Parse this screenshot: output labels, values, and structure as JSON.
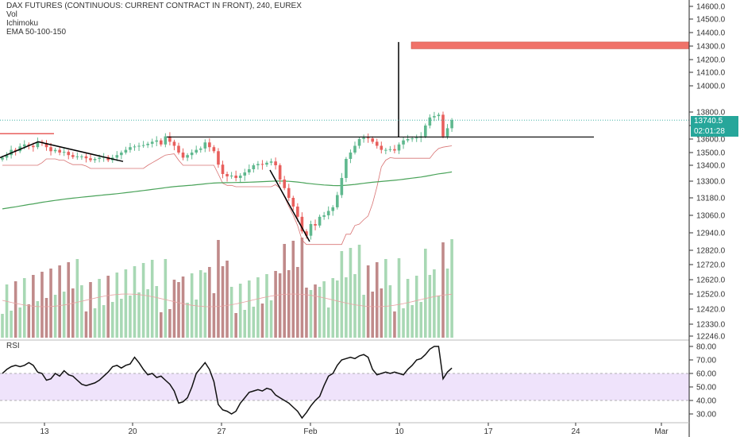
{
  "legend": {
    "title": "DAX FUTURES (CONTINUOUS: CURRENT CONTRACT IN FRONT), 240, EUREX",
    "vol": "Vol",
    "ichimoku": "Ichimoku",
    "ema": "EMA 50-100-150",
    "rsi": "RSI"
  },
  "colors": {
    "up": "#5fb88e",
    "down": "#e85f5c",
    "vol_up": "#a8d8b4",
    "vol_down": "#c08a8a",
    "ema": "#4aa35a",
    "cloud_line": "#d87373",
    "rsi_band": "#efe3fb",
    "price_tag": "#26a69a",
    "box": "#f07269"
  },
  "chart_data": [
    {
      "type": "candlestick",
      "title": "DAX FUTURES (CONTINUOUS: CURRENT CONTRACT IN FRONT), 240, EUREX",
      "ylim": [
        12246,
        14650
      ],
      "y_ticks": [
        14600.0,
        14500.0,
        14400.0,
        14300.0,
        14200.0,
        14100.0,
        14000.0,
        13800.0,
        13700.0,
        13600.0,
        13500.0,
        13400.0,
        13300.0,
        13180.0,
        13060.0,
        12940.0,
        12820.0,
        12720.0,
        12620.0,
        12520.0,
        12420.0,
        12330.0,
        12246.0
      ],
      "y_tick_labels": [
        "14600.0",
        "14500.0",
        "14400.0",
        "14300.0",
        "14200.0",
        "14100.0",
        "14000.0",
        "13800.0",
        "13700.0",
        "13600.0",
        "13500.0",
        "13400.0",
        "13300.0",
        "13180.0",
        "13060.0",
        "12940.0",
        "12820.0",
        "12720.0",
        "12620.0",
        "12520.0",
        "12420.0",
        "12330.0",
        "12246.0"
      ],
      "x_labels": [
        "13",
        "20",
        "27",
        "Feb",
        "10",
        "17",
        "24",
        "Mar"
      ],
      "close": [
        13460,
        13480,
        13520,
        13510,
        13545,
        13560,
        13550,
        13540,
        13580,
        13570,
        13540,
        13510,
        13520,
        13500,
        13505,
        13480,
        13465,
        13470,
        13470,
        13455,
        13440,
        13450,
        13460,
        13465,
        13440,
        13460,
        13480,
        13500,
        13520,
        13540,
        13545,
        13550,
        13555,
        13565,
        13580,
        13590,
        13560,
        13620,
        13580,
        13550,
        13500,
        13460,
        13480,
        13500,
        13520,
        13530,
        13575,
        13540,
        13510,
        13405,
        13345,
        13330,
        13335,
        13320,
        13335,
        13355,
        13375,
        13400,
        13410,
        13405,
        13420,
        13430,
        13400,
        13310,
        13250,
        13180,
        13120,
        13050,
        12950,
        12920,
        13000,
        12990,
        13050,
        13060,
        13090,
        13115,
        13200,
        13320,
        13450,
        13500,
        13550,
        13600,
        13610,
        13605,
        13580,
        13550,
        13520,
        13520,
        13525,
        13515,
        13560,
        13590,
        13600,
        13605,
        13610,
        13620,
        13700,
        13760,
        13770,
        13780,
        13620,
        13680,
        13740
      ],
      "rsi": {
        "title": "RSI",
        "ylim": [
          22,
          83
        ],
        "y_ticks": [
          80.0,
          70.0,
          60.0,
          50.0,
          40.0,
          30.0
        ],
        "y_tick_labels": [
          "80.00",
          "70.00",
          "60.00",
          "50.00",
          "40.00",
          "30.00"
        ],
        "band": [
          40,
          60
        ],
        "values": [
          60,
          63,
          65,
          66,
          65,
          66,
          68,
          66,
          61,
          60,
          55,
          56,
          60,
          58,
          62,
          59,
          58,
          55,
          52,
          51,
          52,
          53,
          55,
          58,
          61,
          65,
          66,
          64,
          66,
          67,
          72,
          68,
          63,
          59,
          60,
          57,
          58,
          55,
          52,
          47,
          38,
          39,
          42,
          50,
          60,
          64,
          68,
          63,
          54,
          37,
          33,
          32,
          30,
          32,
          38,
          42,
          46,
          47,
          48,
          47,
          49,
          48,
          44,
          42,
          40,
          38,
          35,
          32,
          27,
          31,
          36,
          40,
          43,
          51,
          58,
          60,
          66,
          70,
          71,
          72,
          71,
          73,
          74,
          72,
          63,
          59,
          60,
          61,
          60,
          61,
          60,
          59,
          63,
          66,
          70,
          71,
          74,
          78,
          80,
          80,
          56,
          61,
          64
        ]
      }
    }
  ],
  "price_tag": {
    "price": "13740.5",
    "countdown": "02:01:28"
  }
}
